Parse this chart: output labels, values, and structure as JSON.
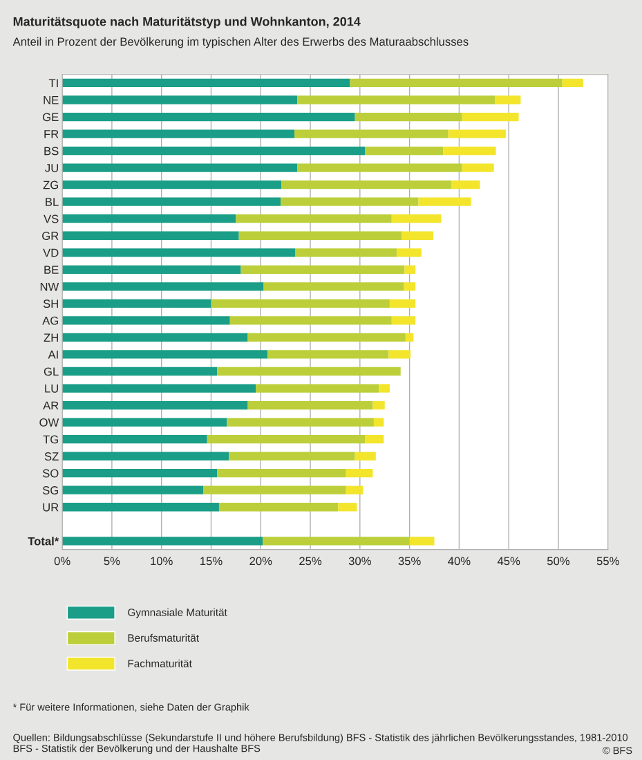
{
  "chart_data": {
    "type": "bar",
    "orientation": "horizontal",
    "stacked": true,
    "title": "Maturitätsquote nach Maturitätstyp und Wohnkanton, 2014",
    "subtitle": "Anteil in Prozent der Bevölkerung im typischen Alter des Erwerbs des Maturaabschlusses",
    "categories": [
      "TI",
      "NE",
      "GE",
      "FR",
      "BS",
      "JU",
      "ZG",
      "BL",
      "VS",
      "GR",
      "VD",
      "BE",
      "NW",
      "SH",
      "AG",
      "ZH",
      "AI",
      "GL",
      "LU",
      "AR",
      "OW",
      "TG",
      "SZ",
      "SO",
      "SG",
      "UR",
      null,
      "Total*"
    ],
    "series": [
      {
        "name": "Gymnasiale Maturität",
        "color": "#1a9e87",
        "values": [
          29.0,
          23.7,
          29.5,
          23.4,
          30.5,
          23.7,
          22.1,
          22.0,
          17.5,
          17.8,
          23.5,
          18.0,
          20.3,
          15.0,
          16.9,
          18.7,
          20.7,
          15.6,
          19.5,
          18.7,
          16.6,
          14.6,
          16.8,
          15.6,
          14.2,
          15.8,
          null,
          20.2
        ]
      },
      {
        "name": "Berufsmaturität",
        "color": "#bccf3a",
        "values": [
          21.4,
          19.9,
          10.8,
          15.5,
          7.9,
          16.6,
          17.1,
          13.9,
          15.7,
          16.4,
          10.2,
          16.5,
          14.1,
          18.0,
          16.3,
          15.9,
          12.2,
          18.5,
          12.4,
          12.6,
          14.8,
          15.9,
          12.7,
          13.0,
          14.4,
          12.0,
          null,
          14.8
        ]
      },
      {
        "name": "Fachmaturität",
        "color": "#f3e52c",
        "values": [
          2.1,
          2.6,
          5.7,
          5.8,
          5.3,
          3.2,
          2.9,
          5.3,
          5.0,
          3.2,
          2.5,
          1.1,
          1.2,
          2.6,
          2.4,
          0.8,
          2.2,
          0,
          1.1,
          1.2,
          1.0,
          1.9,
          2.1,
          2.7,
          1.7,
          1.9,
          null,
          2.5
        ]
      }
    ],
    "xlim": [
      0,
      55
    ],
    "xticks": [
      {
        "value": 0,
        "label": "0%"
      },
      {
        "value": 5,
        "label": "5%"
      },
      {
        "value": 10,
        "label": "10%"
      },
      {
        "value": 15,
        "label": "15%"
      },
      {
        "value": 20,
        "label": "20%"
      },
      {
        "value": 25,
        "label": "25%"
      },
      {
        "value": 30,
        "label": "30%"
      },
      {
        "value": 35,
        "label": "35%"
      },
      {
        "value": 40,
        "label": "40%"
      },
      {
        "value": 45,
        "label": "45%"
      },
      {
        "value": 50,
        "label": "50%"
      },
      {
        "value": 55,
        "label": "55%"
      }
    ],
    "grid": "x",
    "legend": "bottom",
    "annotations": [
      "* Für weitere Informationen, siehe Daten der Graphik",
      "Quellen: Bildungsabschlüsse (Sekundarstufe II und höhere Berufsbildung) BFS - Statistik des jährlichen Bevölkerungsstandes, 1981-2010 BFS - Statistik der Bevölkerung und der Haushalte BFS",
      "© BFS"
    ]
  }
}
